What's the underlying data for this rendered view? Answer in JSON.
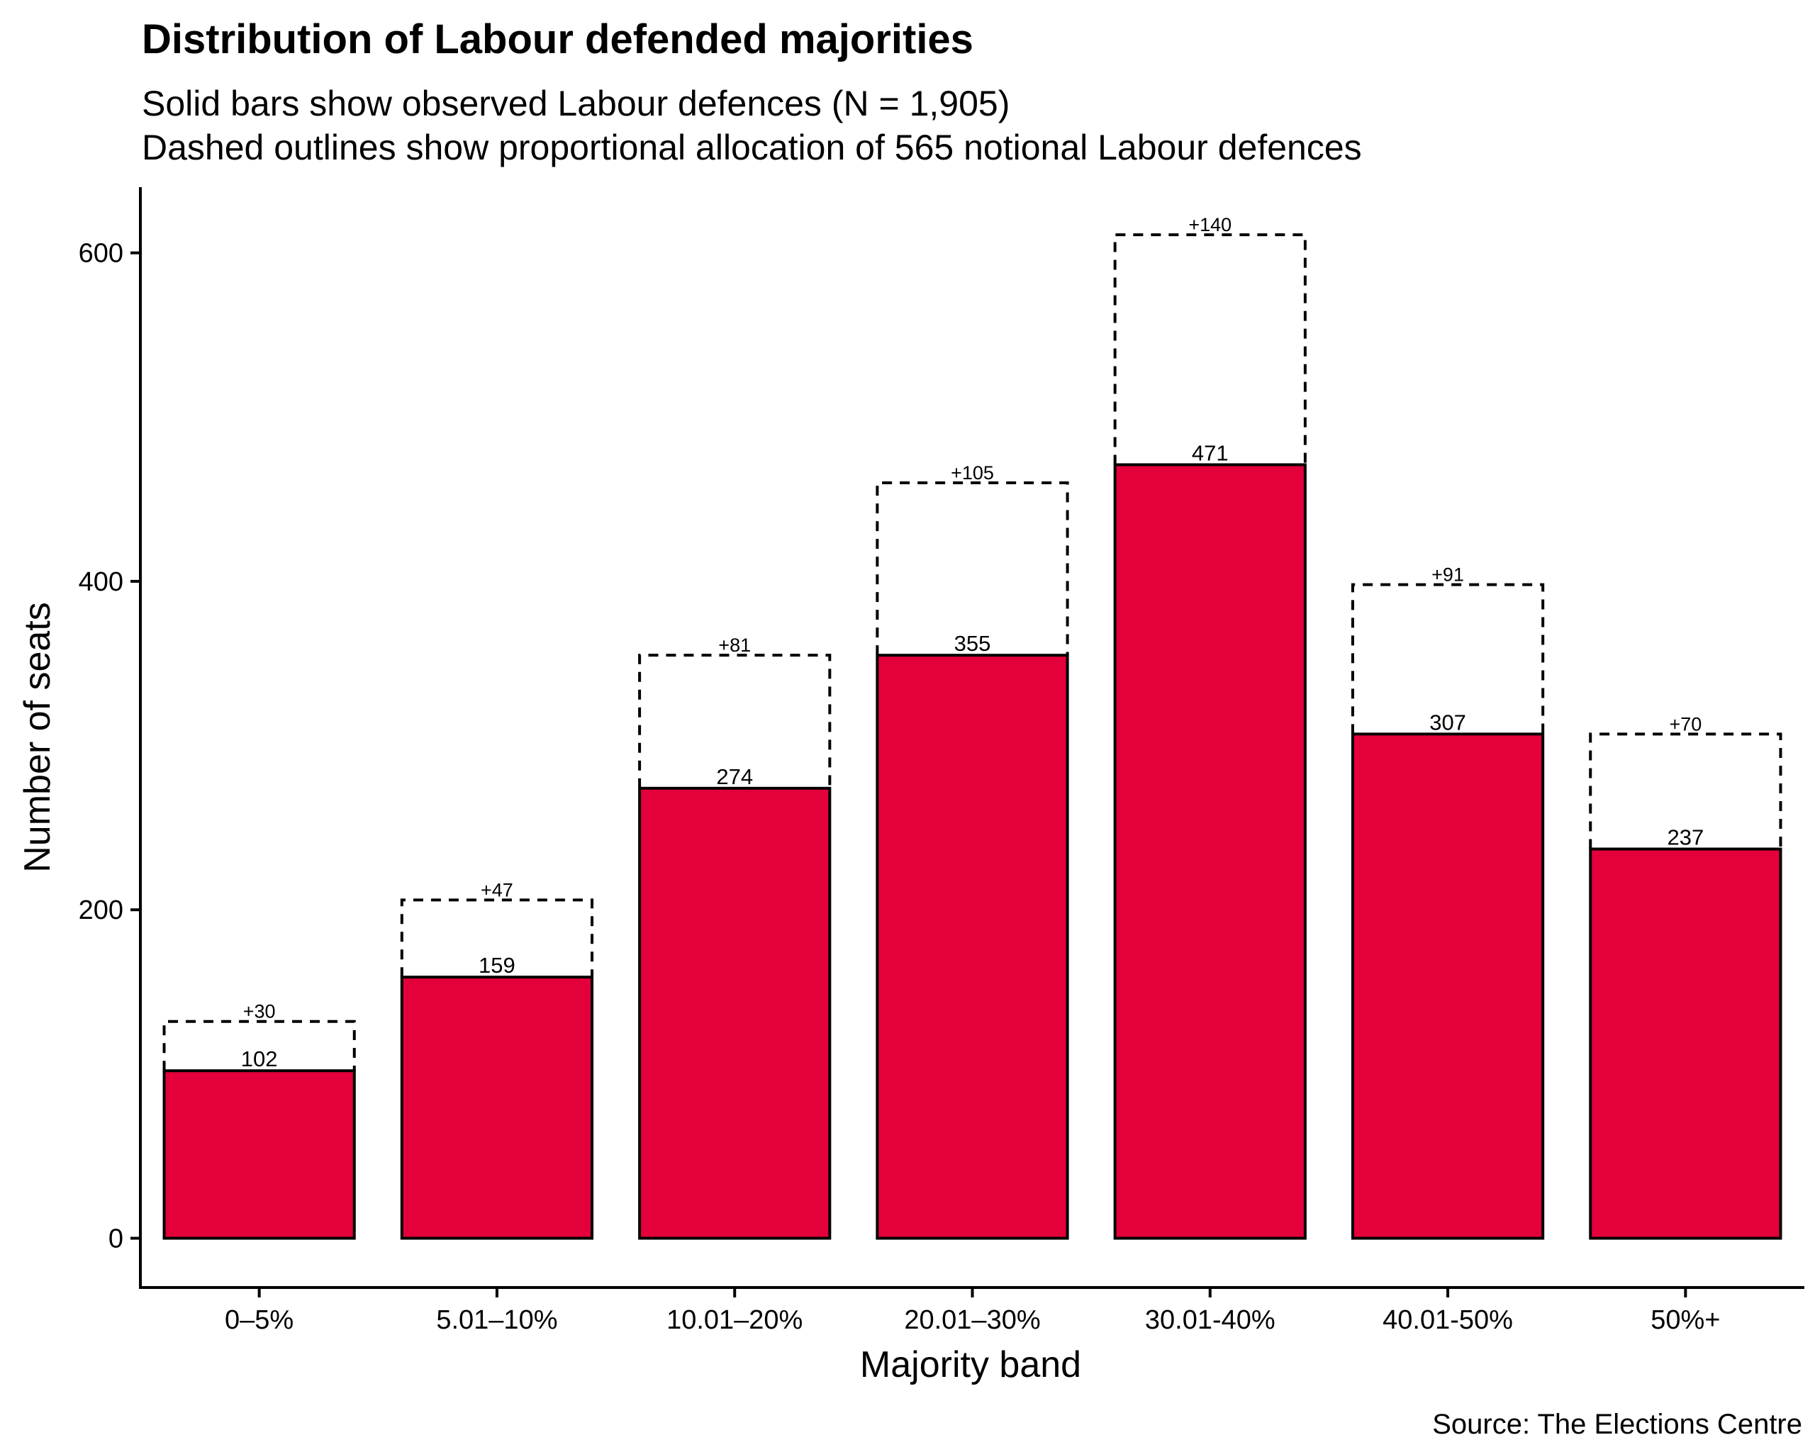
{
  "chart_data": {
    "type": "bar",
    "title": "Distribution of Labour defended majorities",
    "subtitle_lines": [
      "Solid bars show observed Labour defences (N = 1,905)",
      "Dashed outlines show proportional allocation of 565 notional Labour defences"
    ],
    "xlabel": "Majority band",
    "ylabel": "Number of seats",
    "caption": "Source: The Elections Centre",
    "categories": [
      "0–5%",
      "5.01–10%",
      "10.01–20%",
      "20.01–30%",
      "30.01-40%",
      "40.01-50%",
      "50%+"
    ],
    "series": [
      {
        "name": "observed",
        "style": "solid",
        "values": [
          102,
          159,
          274,
          355,
          471,
          307,
          237
        ],
        "labels": [
          "102",
          "159",
          "274",
          "355",
          "471",
          "307",
          "237"
        ]
      },
      {
        "name": "notional",
        "style": "dashed-outline",
        "values": [
          30,
          47,
          81,
          105,
          140,
          91,
          70
        ],
        "labels": [
          "+30",
          "+47",
          "+81",
          "+105",
          "+140",
          "+91",
          "+70"
        ]
      }
    ],
    "yticks": [
      0,
      200,
      400,
      600
    ],
    "ytick_labels": [
      "0",
      "200",
      "400",
      "600"
    ],
    "ylim": [
      -30,
      640
    ],
    "grid": false,
    "legend": "none",
    "colors": {
      "bar_fill": "#e4003b",
      "bar_stroke": "#000000",
      "outline_stroke": "#000000",
      "axis": "#000000"
    }
  }
}
